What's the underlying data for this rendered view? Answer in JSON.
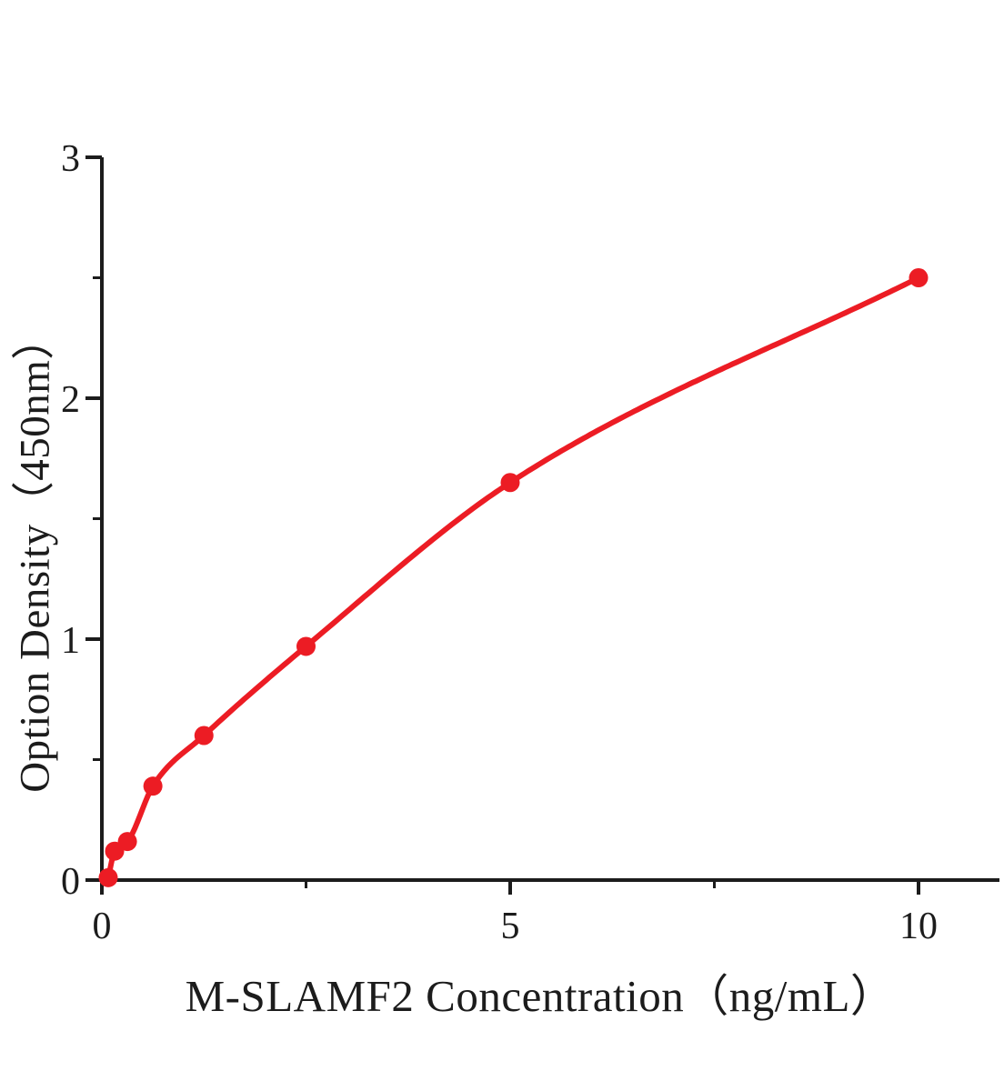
{
  "chart_data": {
    "type": "scatter",
    "title": "",
    "xlabel": "M-SLAMF2 Concentration（ng/mL）",
    "ylabel": "Option Density（450nm）",
    "x": [
      0.078,
      0.156,
      0.313,
      0.625,
      1.25,
      2.5,
      5,
      10
    ],
    "y": [
      0.01,
      0.12,
      0.16,
      0.39,
      0.6,
      0.97,
      1.65,
      2.5
    ],
    "curve_style": "smooth-fit-line-through-points",
    "xlim": [
      0,
      11
    ],
    "ylim": [
      0,
      3
    ],
    "x_major_ticks": [
      0,
      5,
      10
    ],
    "x_tick_labels": [
      "0",
      "5",
      "10"
    ],
    "x_minor_ticks": [
      2.5,
      7.5
    ],
    "y_major_ticks": [
      0,
      1,
      2,
      3
    ],
    "y_tick_labels": [
      "0",
      "1",
      "2",
      "3"
    ],
    "y_minor_ticks": [
      0.5,
      1.5,
      2.5
    ],
    "grid": false,
    "legend": null,
    "colors": {
      "line": "#ec1c24",
      "point": "#ec1c24",
      "axis": "#1c1c1c",
      "text": "#1c1c1c",
      "background": "#ffffff"
    }
  }
}
